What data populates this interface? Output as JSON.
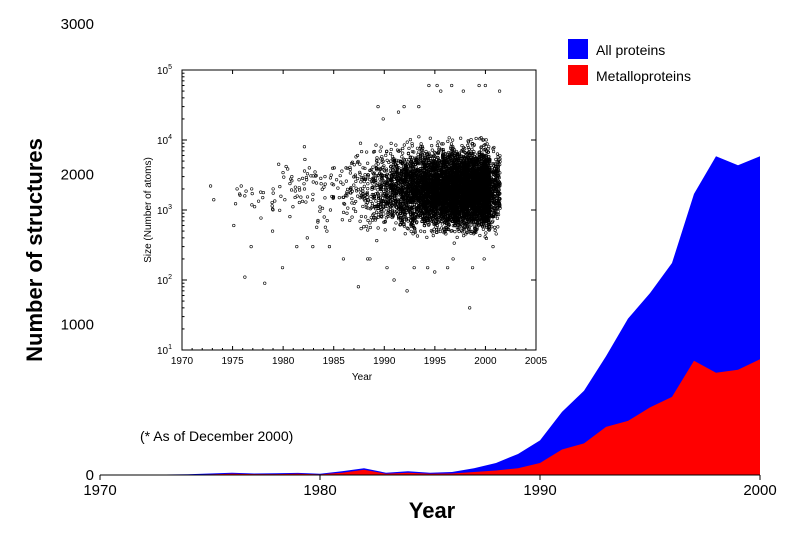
{
  "chart_data": [
    {
      "type": "area",
      "title": "",
      "xlabel": "Year",
      "ylabel": "Number of structures",
      "xlim": [
        1970,
        2000
      ],
      "ylim": [
        0,
        3000
      ],
      "x_ticks": [
        "1970",
        "1980",
        "1990",
        "2000"
      ],
      "y_ticks": [
        "0",
        "1000",
        "2000",
        "3000"
      ],
      "x": [
        1972,
        1973,
        1974,
        1975,
        1976,
        1977,
        1978,
        1979,
        1980,
        1981,
        1982,
        1983,
        1984,
        1985,
        1986,
        1987,
        1988,
        1989,
        1990,
        1991,
        1992,
        1993,
        1994,
        1995,
        1996,
        1997,
        1998,
        1999,
        2000
      ],
      "series": [
        {
          "name": "All proteins",
          "color": "#0000ff",
          "values": [
            2,
            3,
            5,
            10,
            15,
            10,
            12,
            14,
            8,
            25,
            45,
            15,
            25,
            15,
            20,
            45,
            80,
            140,
            230,
            420,
            560,
            790,
            1040,
            1210,
            1410,
            1870,
            2120,
            2060,
            2120
          ]
        },
        {
          "name": "Metalloproteins",
          "color": "#ff0000",
          "values": [
            1,
            1,
            2,
            4,
            8,
            6,
            6,
            8,
            4,
            15,
            35,
            8,
            15,
            8,
            10,
            20,
            30,
            45,
            80,
            170,
            210,
            320,
            360,
            450,
            520,
            760,
            680,
            700,
            770
          ]
        }
      ],
      "legend": {
        "position": "top-right",
        "entries": [
          "All proteins",
          "Metalloproteins"
        ]
      },
      "annotation": "(* As of December 2000)"
    },
    {
      "type": "scatter",
      "title": "",
      "xlabel": "Year",
      "ylabel": "Size (Number of atoms)",
      "xlim": [
        1970,
        2005
      ],
      "ylim": [
        10,
        100000
      ],
      "yscale": "log",
      "x_ticks": [
        "1970",
        "1975",
        "1980",
        "1985",
        "1990",
        "1995",
        "2000",
        "2005"
      ],
      "y_ticks": [
        {
          "base": "10",
          "exp": "1"
        },
        {
          "base": "10",
          "exp": "2"
        },
        {
          "base": "10",
          "exp": "3"
        },
        {
          "base": "10",
          "exp": "4"
        },
        {
          "base": "10",
          "exp": "5"
        }
      ],
      "marker": "open-circle",
      "point_color": "#000000",
      "density_by_year": [
        {
          "year": 1973,
          "count": 2,
          "ymin": 1400,
          "ymax": 2200
        },
        {
          "year": 1975,
          "count": 3,
          "ymin": 600,
          "ymax": 2000
        },
        {
          "year": 1976,
          "count": 6,
          "ymin": 110,
          "ymax": 2200
        },
        {
          "year": 1977,
          "count": 5,
          "ymin": 300,
          "ymax": 2000
        },
        {
          "year": 1978,
          "count": 6,
          "ymin": 90,
          "ymax": 1800
        },
        {
          "year": 1979,
          "count": 8,
          "ymin": 500,
          "ymax": 2000
        },
        {
          "year": 1980,
          "count": 10,
          "ymin": 150,
          "ymax": 4500
        },
        {
          "year": 1981,
          "count": 12,
          "ymin": 300,
          "ymax": 3000
        },
        {
          "year": 1982,
          "count": 18,
          "ymin": 400,
          "ymax": 8000
        },
        {
          "year": 1983,
          "count": 14,
          "ymin": 300,
          "ymax": 4000
        },
        {
          "year": 1984,
          "count": 14,
          "ymin": 500,
          "ymax": 3000
        },
        {
          "year": 1985,
          "count": 14,
          "ymin": 300,
          "ymax": 4000
        },
        {
          "year": 1986,
          "count": 22,
          "ymin": 200,
          "ymax": 4000
        },
        {
          "year": 1987,
          "count": 35,
          "ymin": 80,
          "ymax": 6000
        },
        {
          "year": 1988,
          "count": 60,
          "ymin": 200,
          "ymax": 9000
        },
        {
          "year": 1989,
          "count": 90,
          "ymin": 200,
          "ymax": 30000
        },
        {
          "year": 1990,
          "count": 140,
          "ymin": 150,
          "ymax": 20000
        },
        {
          "year": 1991,
          "count": 220,
          "ymin": 100,
          "ymax": 25000
        },
        {
          "year": 1992,
          "count": 300,
          "ymin": 70,
          "ymax": 30000
        },
        {
          "year": 1993,
          "count": 420,
          "ymin": 150,
          "ymax": 30000
        },
        {
          "year": 1994,
          "count": 530,
          "ymin": 150,
          "ymax": 60000
        },
        {
          "year": 1995,
          "count": 640,
          "ymin": 130,
          "ymax": 60000
        },
        {
          "year": 1996,
          "count": 720,
          "ymin": 150,
          "ymax": 50000
        },
        {
          "year": 1997,
          "count": 850,
          "ymin": 200,
          "ymax": 60000
        },
        {
          "year": 1998,
          "count": 950,
          "ymin": 40,
          "ymax": 50000
        },
        {
          "year": 1999,
          "count": 930,
          "ymin": 150,
          "ymax": 60000
        },
        {
          "year": 2000,
          "count": 980,
          "ymin": 200,
          "ymax": 60000
        },
        {
          "year": 2001,
          "count": 250,
          "ymin": 300,
          "ymax": 50000
        }
      ]
    }
  ],
  "colors": {
    "background": "#ffffff",
    "axis": "#000000"
  }
}
